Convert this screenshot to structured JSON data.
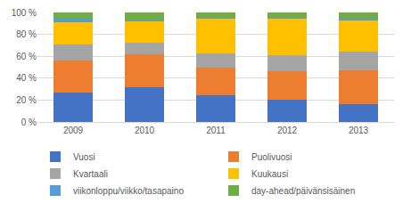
{
  "chart_data": {
    "type": "bar",
    "stacked": true,
    "grid": true,
    "legend": "bottom",
    "categories": [
      "2009",
      "2010",
      "2011",
      "2012",
      "2013"
    ],
    "series": [
      {
        "name": "Vuosi",
        "color": "#4472c4",
        "values": [
          27,
          32,
          24,
          20,
          16
        ]
      },
      {
        "name": "Puolivuosi",
        "color": "#ed7d31",
        "values": [
          29,
          30,
          26,
          26,
          31
        ]
      },
      {
        "name": "Kvartaali",
        "color": "#a5a5a5",
        "values": [
          15,
          10,
          13,
          15,
          17
        ]
      },
      {
        "name": "Kuukausi",
        "color": "#ffc000",
        "values": [
          20,
          20,
          31,
          33,
          29
        ]
      },
      {
        "name": "viikonloppu/viikko/tasapaino",
        "color": "#5b9bd5",
        "values": [
          3,
          1,
          1,
          1,
          1
        ]
      },
      {
        "name": "day-ahead/päivänsisäinen",
        "color": "#70ad47",
        "values": [
          6,
          7,
          5,
          5,
          6
        ]
      }
    ],
    "ylim": [
      0,
      100
    ],
    "yticks": [
      {
        "value": 0,
        "label": "0 %"
      },
      {
        "value": 20,
        "label": "20 %"
      },
      {
        "value": 40,
        "label": "40 %"
      },
      {
        "value": 60,
        "label": "60 %"
      },
      {
        "value": 80,
        "label": "80 %"
      },
      {
        "value": 100,
        "label": "100 %"
      }
    ]
  }
}
